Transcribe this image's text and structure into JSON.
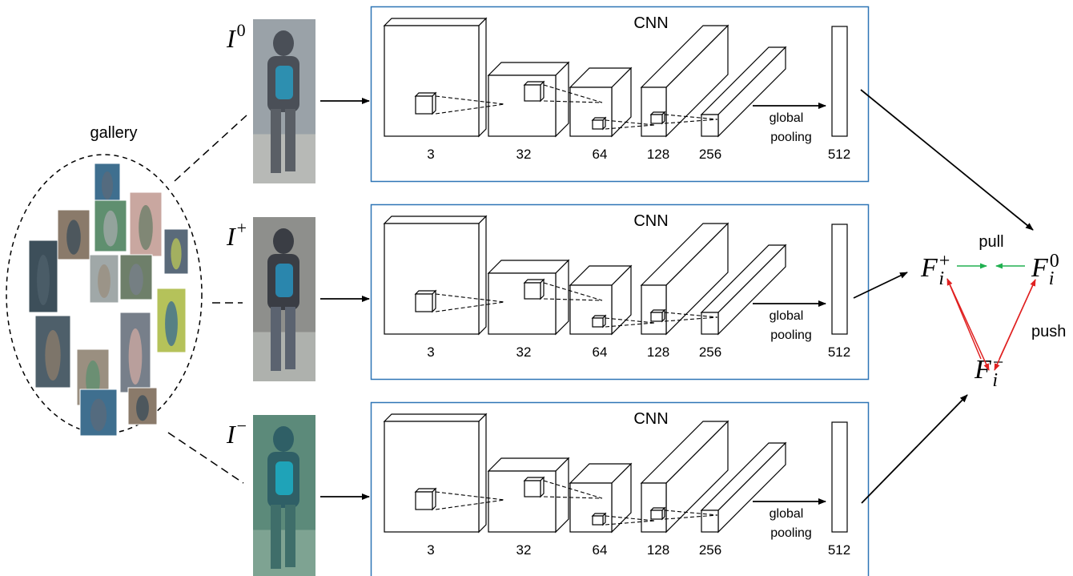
{
  "gallery": {
    "label": "gallery",
    "thumbnail_colors": [
      "#3f6f8f",
      "#8a7a6a",
      "#5f8f6f",
      "#c9a7a0",
      "#5a6a7a",
      "#3d4f5a",
      "#a0a8a8",
      "#6e7f6a",
      "#b5c25a",
      "#4e5f6a",
      "#9a8f80",
      "#777f8a"
    ]
  },
  "inputs": [
    {
      "symbol": "I",
      "sup": "0",
      "photo_colors": [
        "#9aa2a8",
        "#4a4f57",
        "#2d8fb0",
        "#5a5f66",
        "#b7b9b6"
      ]
    },
    {
      "symbol": "I",
      "sup": "+",
      "photo_colors": [
        "#8e8f8c",
        "#3a3d44",
        "#2a86ad",
        "#5b6370",
        "#aeb1ad"
      ]
    },
    {
      "symbol": "I",
      "sup": "−",
      "photo_colors": [
        "#5c8a7a",
        "#2f5f66",
        "#1fa3b8",
        "#3f6e6a",
        "#7ea392"
      ]
    }
  ],
  "cnn": {
    "title": "CNN",
    "layers": [
      "3",
      "32",
      "64",
      "128",
      "256"
    ],
    "output": "512",
    "pool_label_1": "global",
    "pool_label_2": "pooling"
  },
  "features": {
    "fi_plus": {
      "base": "F",
      "sub": "i",
      "sup": "+"
    },
    "fi_zero": {
      "base": "F",
      "sub": "i",
      "sup": "0"
    },
    "fi_minus": {
      "base": "F",
      "sub": "i",
      "sup": "−"
    },
    "pull_label": "pull",
    "push_label": "push",
    "pull_color": "#20b050",
    "push_color": "#e02020"
  },
  "colors": {
    "box_border": "#2e75b6",
    "line": "#000000"
  }
}
